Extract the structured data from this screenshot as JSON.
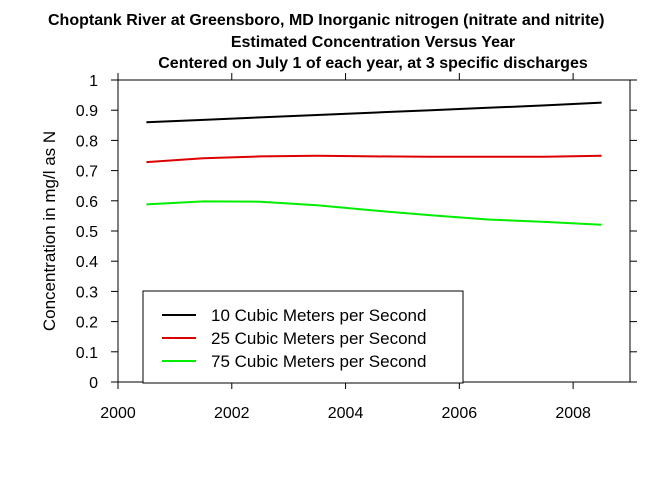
{
  "chart_data": {
    "type": "line",
    "title_lines": [
      "Choptank River at Greensboro, MD    Inorganic nitrogen (nitrate and nitrite)",
      "Estimated Concentration Versus Year",
      "Centered on July 1 of each year, at 3 specific discharges"
    ],
    "xlabel": "",
    "ylabel": "Concentration in mg/l as N",
    "xlim": [
      2000,
      2009
    ],
    "ylim": [
      0,
      1
    ],
    "x_ticks": [
      2000,
      2002,
      2004,
      2006,
      2008
    ],
    "y_ticks": [
      0,
      0.1,
      0.2,
      0.3,
      0.4,
      0.5,
      0.6,
      0.7,
      0.8,
      0.9,
      1
    ],
    "legend_position": "bottom-left",
    "grid": false,
    "x": [
      2000.5,
      2001.5,
      2002.5,
      2003.5,
      2004.5,
      2005.5,
      2006.5,
      2007.5,
      2008.5
    ],
    "series": [
      {
        "name": "10 Cubic Meters per Second",
        "color": "#000000",
        "values": [
          0.86,
          0.868,
          0.876,
          0.884,
          0.892,
          0.9,
          0.908,
          0.916,
          0.925
        ]
      },
      {
        "name": "25 Cubic Meters per Second",
        "color": "#dd0000",
        "values": [
          0.728,
          0.741,
          0.747,
          0.749,
          0.747,
          0.746,
          0.746,
          0.746,
          0.749
        ]
      },
      {
        "name": "75 Cubic Meters per Second",
        "color": "#00ee00",
        "values": [
          0.588,
          0.598,
          0.597,
          0.585,
          0.568,
          0.552,
          0.538,
          0.53,
          0.521
        ]
      }
    ]
  }
}
